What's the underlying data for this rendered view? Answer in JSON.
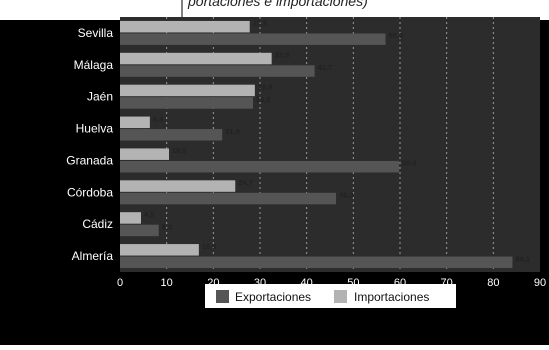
{
  "page": {
    "title_fragment": "portaciones e importaciones)"
  },
  "chart_data": {
    "type": "bar",
    "orientation": "horizontal",
    "categories": [
      "Sevilla",
      "Málaga",
      "Jaén",
      "Huelva",
      "Granada",
      "Córdoba",
      "Cádiz",
      "Almería"
    ],
    "series": [
      {
        "name": "Importaciones",
        "color": "#b3b3b3",
        "values": [
          27.8,
          32.5,
          28.9,
          6.4,
          10.5,
          24.7,
          4.5,
          16.9
        ],
        "labels": [
          "27,8",
          "32,5",
          "28,9",
          "6,4",
          "10,5",
          "24,7",
          "4,5",
          "16,9"
        ]
      },
      {
        "name": "Exportaciones",
        "color": "#555555",
        "values": [
          56.9,
          41.7,
          28.5,
          21.9,
          59.8,
          46.3,
          8.3,
          84.1
        ],
        "labels": [
          "56,9",
          "41,7",
          "28,5",
          "21,9",
          "59,8",
          "46,3",
          "8,3",
          "84,1"
        ]
      }
    ],
    "xlim": [
      0,
      90
    ],
    "xticks": [
      "0",
      "10",
      "20",
      "30",
      "40",
      "50",
      "60",
      "70",
      "80",
      "90"
    ],
    "grid": true,
    "legend": {
      "position": "bottom",
      "entries": [
        "Exportaciones",
        "Importaciones"
      ]
    },
    "colors": {
      "outer_background": "#000000",
      "plot_background": "#2c2c2c",
      "grid": "#9a9a9a",
      "legend_background": "#ffffff"
    }
  }
}
